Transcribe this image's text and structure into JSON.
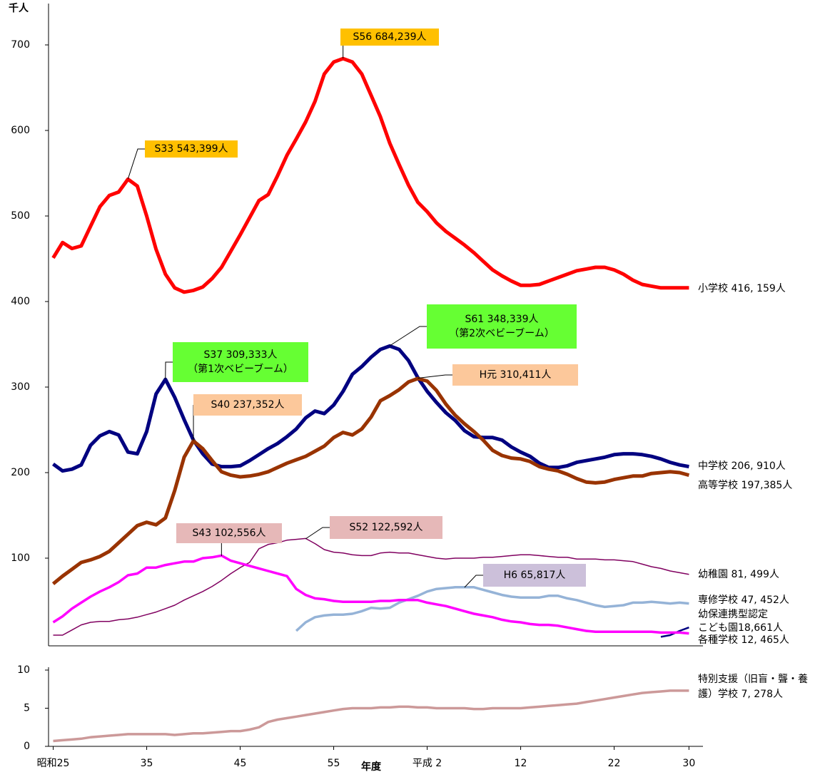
{
  "chart_data": [
    {
      "type": "line",
      "y_unit_label": "千人",
      "x": [
        1950,
        1951,
        1952,
        1953,
        1954,
        1955,
        1956,
        1957,
        1958,
        1959,
        1960,
        1961,
        1962,
        1963,
        1964,
        1965,
        1966,
        1967,
        1968,
        1969,
        1970,
        1971,
        1972,
        1973,
        1974,
        1975,
        1976,
        1977,
        1978,
        1979,
        1980,
        1981,
        1982,
        1983,
        1984,
        1985,
        1986,
        1987,
        1988,
        1989,
        1990,
        1991,
        1992,
        1993,
        1994,
        1995,
        1996,
        1997,
        1998,
        1999,
        2000,
        2001,
        2002,
        2003,
        2004,
        2005,
        2006,
        2007,
        2008,
        2009,
        2010,
        2011,
        2012,
        2013,
        2014,
        2015,
        2016,
        2017,
        2018
      ],
      "xlim": [
        1949.5,
        2019.5
      ],
      "ylim": [
        0,
        745
      ],
      "yticks": [
        100,
        200,
        300,
        400,
        500,
        600,
        700
      ],
      "series": [
        {
          "label": [
            "小学校  416, 159人"
          ],
          "color": "#ff0000",
          "width": 5,
          "values": [
            451,
            469,
            462,
            465,
            488,
            511,
            524,
            528,
            543,
            535,
            500,
            461,
            432,
            416,
            411,
            413,
            417,
            427,
            440,
            459,
            478,
            498,
            518,
            525,
            547,
            571,
            590,
            610,
            634,
            666,
            680,
            684,
            680,
            666,
            641,
            616,
            585,
            560,
            536,
            516,
            505,
            492,
            482,
            474,
            466,
            457,
            447,
            437,
            430,
            424,
            419,
            419,
            420,
            424,
            428,
            432,
            436,
            438,
            440,
            440,
            437,
            432,
            425,
            420,
            418,
            416,
            416,
            416,
            416
          ]
        },
        {
          "label": [
            "中学校  206, 910人"
          ],
          "color": "#000080",
          "width": 5,
          "values": [
            210,
            202,
            204,
            209,
            232,
            243,
            248,
            244,
            224,
            222,
            248,
            292,
            309,
            288,
            262,
            238,
            222,
            210,
            207,
            207,
            208,
            214,
            221,
            228,
            234,
            242,
            251,
            264,
            272,
            269,
            279,
            295,
            315,
            324,
            335,
            344,
            348,
            344,
            331,
            311,
            295,
            282,
            270,
            261,
            249,
            242,
            241,
            241,
            238,
            230,
            224,
            219,
            211,
            206,
            206,
            208,
            212,
            214,
            216,
            218,
            221,
            222,
            222,
            221,
            219,
            216,
            212,
            209,
            207
          ]
        },
        {
          "label": [
            "高等学校  197,385人"
          ],
          "color": "#993300",
          "width": 5,
          "values": [
            70,
            79,
            87,
            95,
            98,
            102,
            108,
            118,
            128,
            138,
            142,
            139,
            147,
            179,
            218,
            237,
            228,
            214,
            201,
            197,
            195,
            196,
            198,
            201,
            206,
            211,
            215,
            219,
            225,
            231,
            241,
            247,
            244,
            251,
            265,
            284,
            290,
            297,
            306,
            310,
            307,
            296,
            280,
            267,
            257,
            248,
            238,
            226,
            220,
            217,
            216,
            213,
            207,
            204,
            202,
            198,
            193,
            189,
            188,
            189,
            192,
            194,
            196,
            196,
            199,
            200,
            201,
            200,
            197
          ]
        },
        {
          "label": [
            "幼稚園  81, 499人"
          ],
          "color": "#800060",
          "width": 1.5,
          "values": [
            10,
            10,
            16,
            22,
            25,
            26,
            26,
            28,
            29,
            31,
            34,
            37,
            41,
            45,
            51,
            56,
            61,
            67,
            74,
            82,
            89,
            95,
            111,
            116,
            118,
            121,
            122,
            123,
            117,
            110,
            107,
            106,
            104,
            103,
            103,
            106,
            107,
            106,
            106,
            104,
            102,
            100,
            99,
            100,
            100,
            100,
            101,
            101,
            102,
            103,
            104,
            104,
            103,
            102,
            101,
            101,
            99,
            99,
            99,
            98,
            98,
            97,
            96,
            93,
            90,
            88,
            85,
            83,
            81
          ]
        },
        {
          "label": [
            "専修学校  47, 452人"
          ],
          "color": "#95b3d7",
          "width": 3.5,
          "values": [
            null,
            null,
            null,
            null,
            null,
            null,
            null,
            null,
            null,
            null,
            null,
            null,
            null,
            null,
            null,
            null,
            null,
            null,
            null,
            null,
            null,
            null,
            null,
            null,
            null,
            null,
            15,
            25,
            31,
            33,
            34,
            34,
            35,
            38,
            42,
            41,
            42,
            48,
            52,
            56,
            61,
            64,
            65,
            66,
            66,
            66,
            63,
            60,
            57,
            55,
            54,
            54,
            54,
            56,
            56,
            53,
            51,
            48,
            45,
            43,
            44,
            45,
            48,
            48,
            49,
            48,
            47,
            48,
            47
          ]
        },
        {
          "label": [
            "幼保連携型認定",
            "こども園18,661人"
          ],
          "color": "#000080",
          "width": 2.5,
          "values": [
            null,
            null,
            null,
            null,
            null,
            null,
            null,
            null,
            null,
            null,
            null,
            null,
            null,
            null,
            null,
            null,
            null,
            null,
            null,
            null,
            null,
            null,
            null,
            null,
            null,
            null,
            null,
            null,
            null,
            null,
            null,
            null,
            null,
            null,
            null,
            null,
            null,
            null,
            null,
            null,
            null,
            null,
            null,
            null,
            null,
            null,
            null,
            null,
            null,
            null,
            null,
            null,
            null,
            null,
            null,
            null,
            null,
            null,
            null,
            null,
            null,
            null,
            null,
            null,
            null,
            8,
            10,
            15,
            19
          ]
        },
        {
          "label": [
            "各種学校  12, 465人"
          ],
          "color": "#ff00ff",
          "width": 3.5,
          "values": [
            25,
            32,
            41,
            48,
            55,
            61,
            66,
            72,
            80,
            82,
            89,
            89,
            92,
            94,
            96,
            96,
            100,
            101,
            103,
            97,
            94,
            91,
            88,
            85,
            82,
            79,
            64,
            57,
            53,
            52,
            50,
            49,
            49,
            49,
            49,
            50,
            50,
            51,
            51,
            51,
            48,
            46,
            44,
            41,
            38,
            35,
            33,
            31,
            28,
            26,
            25,
            23,
            22,
            22,
            21,
            19,
            17,
            15,
            14,
            14,
            14,
            14,
            14,
            14,
            14,
            13,
            13,
            13,
            12
          ]
        }
      ],
      "annotations": [
        {
          "text": [
            "S33 543,399人"
          ],
          "x": 1958,
          "y": 543.399,
          "color": "#ffc000"
        },
        {
          "text": [
            "S56  684,239人"
          ],
          "x": 1981,
          "y": 684.239,
          "color": "#ffc000"
        },
        {
          "text": [
            "S37 309,333人",
            "（第1次ベビーブーム）"
          ],
          "x": 1962,
          "y": 309.333,
          "color": "#66ff33"
        },
        {
          "text": [
            "S61  348,339人",
            "（第2次ベビーブーム）"
          ],
          "x": 1986,
          "y": 348.339,
          "color": "#66ff33"
        },
        {
          "text": [
            "S40 237,352人"
          ],
          "x": 1965,
          "y": 237.352,
          "color": "#fcc89b"
        },
        {
          "text": [
            "H元  310,411人"
          ],
          "x": 1989,
          "y": 310.411,
          "color": "#fcc89b"
        },
        {
          "text": [
            "S43  102,556人"
          ],
          "x": 1968,
          "y": 102.556,
          "color": "#e6b8b8"
        },
        {
          "text": [
            "S52  122,592人"
          ],
          "x": 1977,
          "y": 122.592,
          "color": "#e6b8b8"
        },
        {
          "text": [
            "H6 65,817人"
          ],
          "x": 1994,
          "y": 65.817,
          "color": "#ccc0da"
        }
      ]
    },
    {
      "type": "line",
      "x_axis_label": "年度",
      "x": [
        1950,
        1951,
        1952,
        1953,
        1954,
        1955,
        1956,
        1957,
        1958,
        1959,
        1960,
        1961,
        1962,
        1963,
        1964,
        1965,
        1966,
        1967,
        1968,
        1969,
        1970,
        1971,
        1972,
        1973,
        1974,
        1975,
        1976,
        1977,
        1978,
        1979,
        1980,
        1981,
        1982,
        1983,
        1984,
        1985,
        1986,
        1987,
        1988,
        1989,
        1990,
        1991,
        1992,
        1993,
        1994,
        1995,
        1996,
        1997,
        1998,
        1999,
        2000,
        2001,
        2002,
        2003,
        2004,
        2005,
        2006,
        2007,
        2008,
        2009,
        2010,
        2011,
        2012,
        2013,
        2014,
        2015,
        2016,
        2017,
        2018
      ],
      "xlim": [
        1949.5,
        2019.5
      ],
      "ylim": [
        0,
        10
      ],
      "yticks": [
        0,
        5,
        10
      ],
      "xticks": [
        {
          "value": 1950,
          "label": "昭和25"
        },
        1960,
        1970,
        1980,
        1990,
        2000,
        2010,
        2018
      ],
      "xtick_labels": [
        "昭和25",
        "35",
        "45",
        "55",
        "平成 2",
        "12",
        "22",
        "30"
      ],
      "series": [
        {
          "label": [
            "特別支援（旧盲・聾・養",
            "護）学校  7, 278人"
          ],
          "color": "#cc9999",
          "width": 3.5,
          "values": [
            0.7,
            0.8,
            0.9,
            1.0,
            1.2,
            1.3,
            1.4,
            1.5,
            1.6,
            1.6,
            1.6,
            1.6,
            1.6,
            1.5,
            1.6,
            1.7,
            1.7,
            1.8,
            1.9,
            2.0,
            2.0,
            2.2,
            2.5,
            3.2,
            3.5,
            3.7,
            3.9,
            4.1,
            4.3,
            4.5,
            4.7,
            4.9,
            5.0,
            5.0,
            5.0,
            5.1,
            5.1,
            5.2,
            5.2,
            5.1,
            5.1,
            5.0,
            5.0,
            5.0,
            5.0,
            4.9,
            4.9,
            5.0,
            5.0,
            5.0,
            5.0,
            5.1,
            5.2,
            5.3,
            5.4,
            5.5,
            5.6,
            5.8,
            6.0,
            6.2,
            6.4,
            6.6,
            6.8,
            7.0,
            7.1,
            7.2,
            7.3,
            7.3,
            7.3
          ]
        }
      ]
    }
  ]
}
